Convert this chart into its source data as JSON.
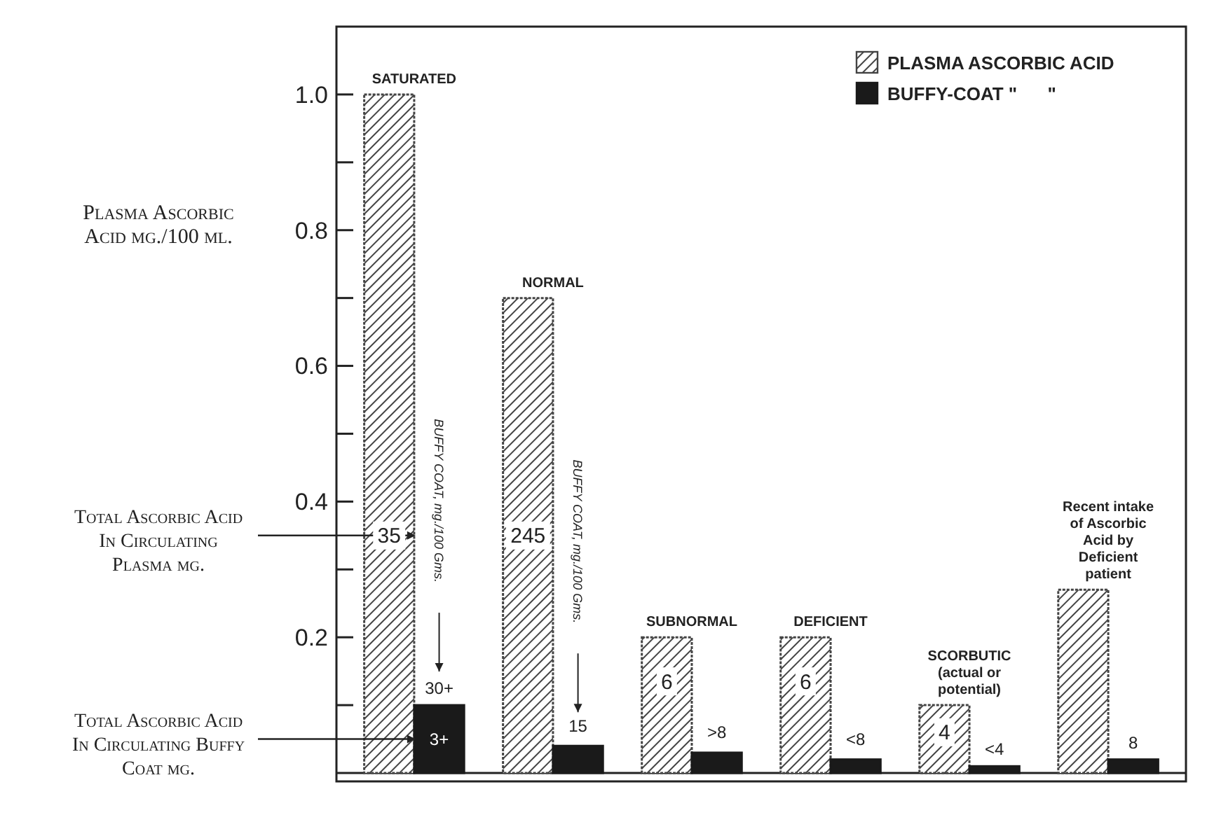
{
  "chart_data": {
    "type": "bar",
    "categories": [
      "SATURATED",
      "NORMAL",
      "SUBNORMAL",
      "DEFICIENT",
      "SCORBUTIC (actual or potential)",
      "Recent intake of Ascorbic Acid by Deficient patient"
    ],
    "series": [
      {
        "name": "PLASMA ASCORBIC ACID",
        "color": "#444444",
        "values": [
          1.0,
          0.7,
          0.2,
          0.2,
          0.1,
          0.27
        ]
      },
      {
        "name": "BUFFY-COAT \"      \"",
        "color": "#1a1a1a",
        "values": [
          0.1,
          0.04,
          0.03,
          0.02,
          0.01,
          0.02
        ]
      }
    ],
    "ylabel": "Plasma Ascorbic Acid mg./100 ml.",
    "ylim": [
      0,
      1.1
    ],
    "yticks": [
      {
        "value": 0.1,
        "label": null
      },
      0.2,
      {
        "value": 0.3,
        "label": null
      },
      0.4,
      {
        "value": 0.5,
        "label": null
      },
      0.6,
      {
        "value": 0.7,
        "label": null
      },
      0.8,
      {
        "value": 0.9,
        "label": null
      },
      {
        "value": 1.0,
        "label": "1.0"
      }
    ],
    "annotations": [
      {
        "text": "Total Ascorbic Acid In Circulating Plasma mg.",
        "x": "SATURATED",
        "y": 0.35
      },
      {
        "text": "Total Ascorbic Acid In Circulating Buffy Coat mg.",
        "x": "SATURATED",
        "y": 0.05
      },
      "BUFFY COAT, mg./100 Gms.",
      "BUFFY COAT, mg./100 Gms.",
      {
        "text": "35",
        "x": "SATURATED",
        "y": 0.35
      },
      {
        "text": "245",
        "x": "NORMAL",
        "y": 0.35
      },
      {
        "text": "6",
        "x": "SUBNORMAL",
        "y": 0.135
      },
      {
        "text": "6",
        "x": "DEFICIENT",
        "y": 0.135
      },
      {
        "text": "4",
        "x": "SCORBUTIC (actual or potential)",
        "y": 0.06
      },
      {
        "text": "3+",
        "x": "SATURATED",
        "y": 0.05
      },
      {
        "text": "30+",
        "x": "SATURATED",
        "y": 0.125
      },
      {
        "text": "15",
        "x": "NORMAL",
        "y": 0.07
      },
      {
        "text": ">8",
        "x": "SUBNORMAL",
        "y": 0.06
      },
      {
        "text": "<8",
        "x": "DEFICIENT",
        "y": 0.05
      },
      {
        "text": "<4",
        "x": "SCORBUTIC (actual or potential)",
        "y": 0.035
      },
      {
        "text": "8",
        "x": "Recent intake of Ascorbic Acid by Deficient patient",
        "y": 0.045
      }
    ],
    "legend": "top right",
    "grid": false
  }
}
